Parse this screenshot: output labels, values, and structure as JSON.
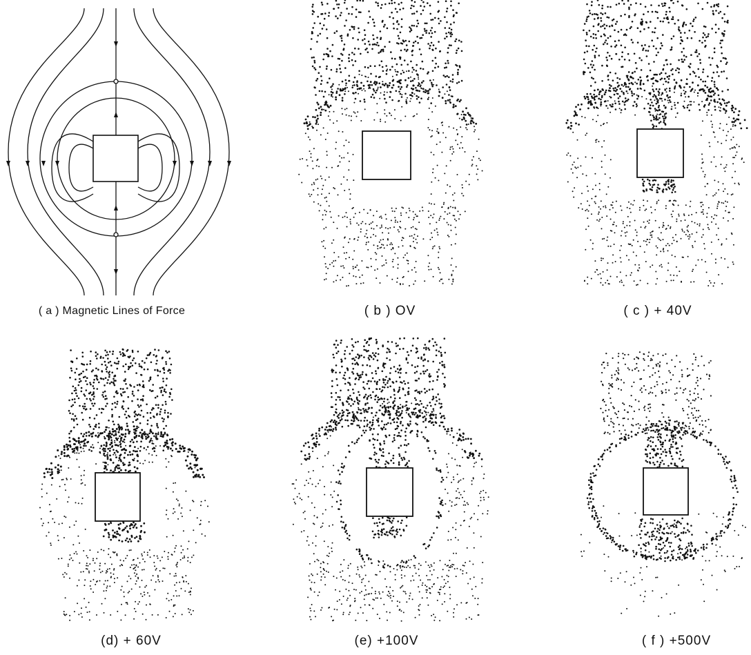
{
  "figure": {
    "panels": [
      {
        "id": "a",
        "caption": "( a ) Magnetic Lines of  Force",
        "kind": "field-lines"
      },
      {
        "id": "b",
        "caption": "( b )  OV",
        "kind": "particles",
        "bias": "0V"
      },
      {
        "id": "c",
        "caption": "( c )  + 40V",
        "kind": "particles",
        "bias": "+40V"
      },
      {
        "id": "d",
        "caption": "(d)  + 60V",
        "kind": "particles",
        "bias": "+60V"
      },
      {
        "id": "e",
        "caption": "(e)  +100V",
        "kind": "particles",
        "bias": "+100V"
      },
      {
        "id": "f",
        "caption": "( f )  +500V",
        "kind": "particles",
        "bias": "+500V"
      }
    ],
    "colors": {
      "ink": "#111111",
      "background": "#ffffff"
    }
  }
}
